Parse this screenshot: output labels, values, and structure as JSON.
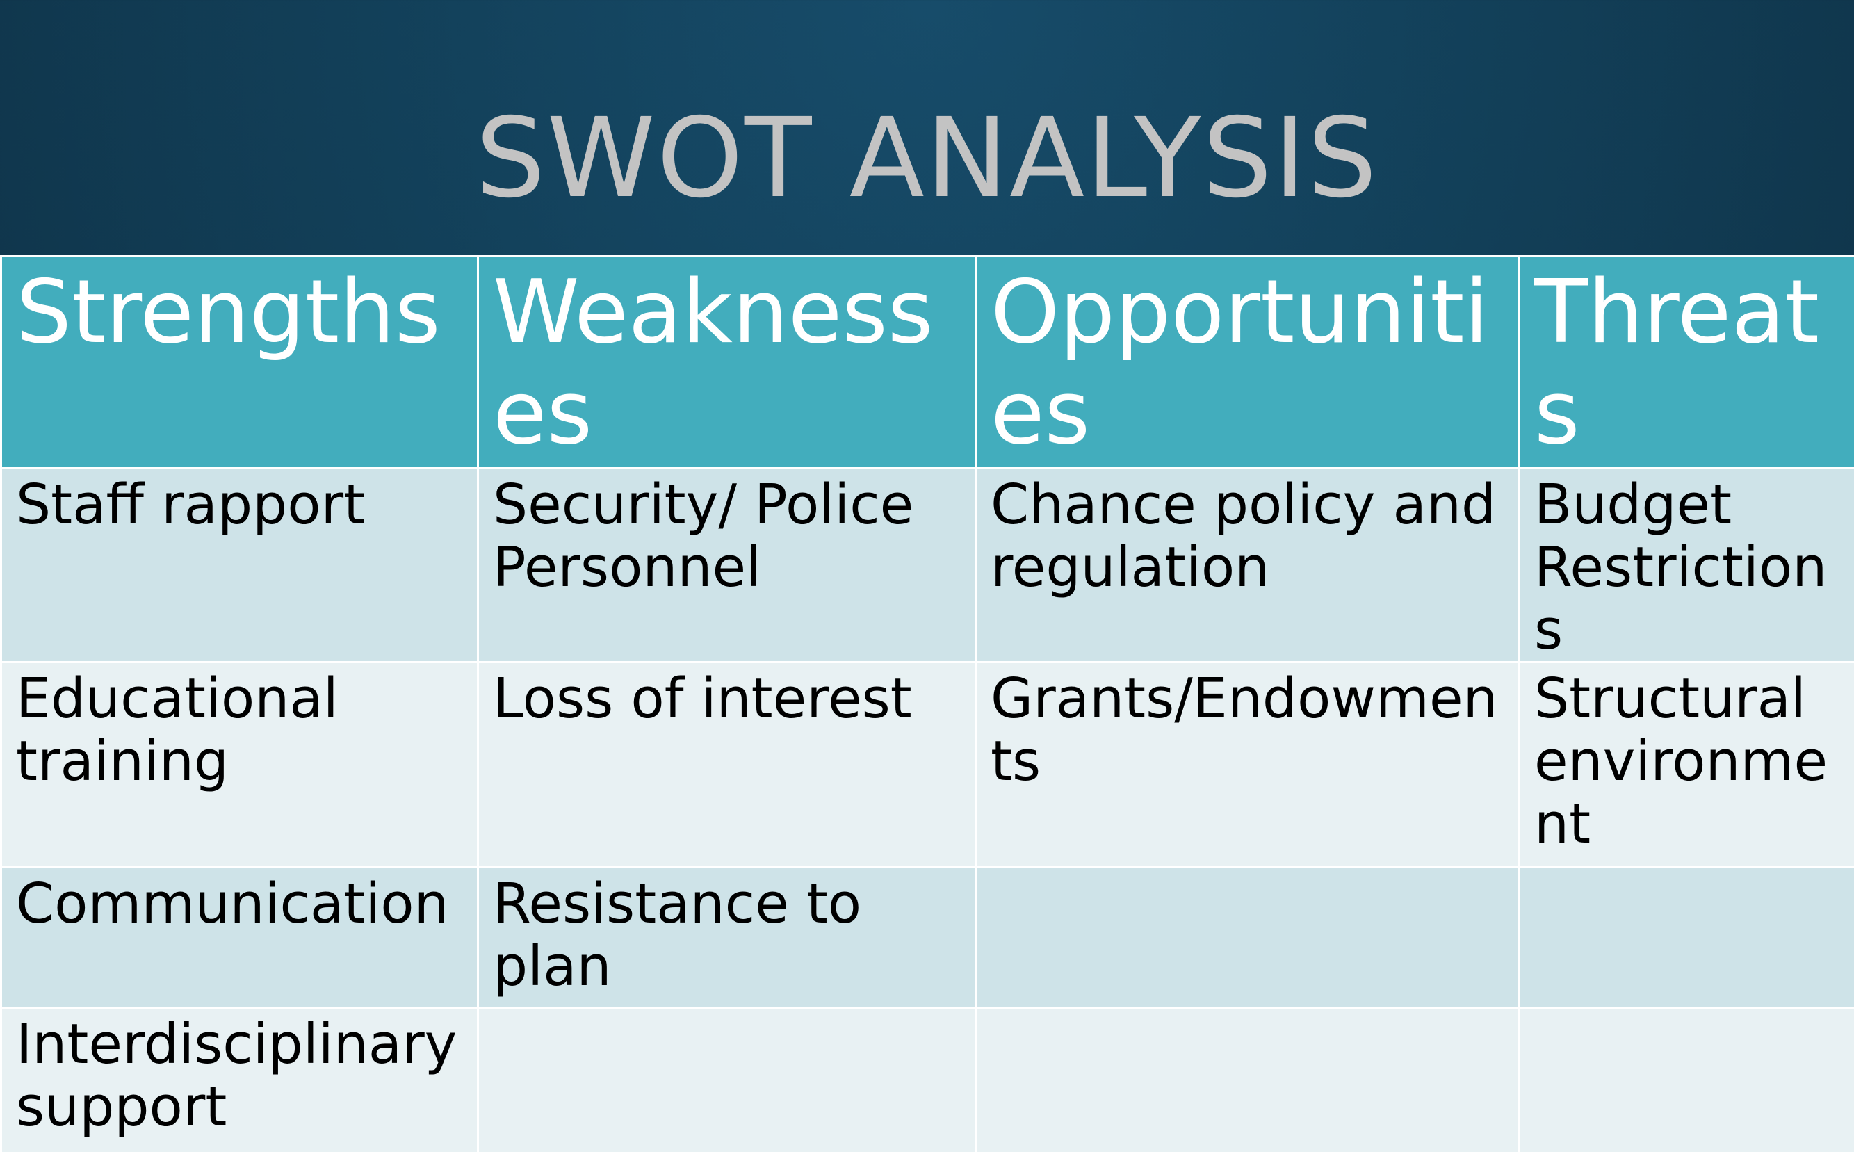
{
  "slide": {
    "title": "SWOT ANALYSIS",
    "colors": {
      "title_bg": "#123f58",
      "title_text": "#c3c3c3",
      "header_bg": "#42adbd",
      "row_odd": "#cee3e8",
      "row_even": "#e8f1f3"
    }
  },
  "table": {
    "headers": [
      "Strengths",
      "Weaknesses",
      "Opportunities",
      "Threats"
    ],
    "rows": [
      [
        "Staff rapport",
        "Security/ Police Personnel",
        "Chance policy and regulation",
        "Budget Restrictions"
      ],
      [
        "Educational training",
        "Loss of interest",
        "Grants/Endowments",
        "Structural environment"
      ],
      [
        "Communication",
        "Resistance to plan",
        "",
        ""
      ],
      [
        "Interdisciplinary support",
        "",
        "",
        ""
      ]
    ]
  }
}
